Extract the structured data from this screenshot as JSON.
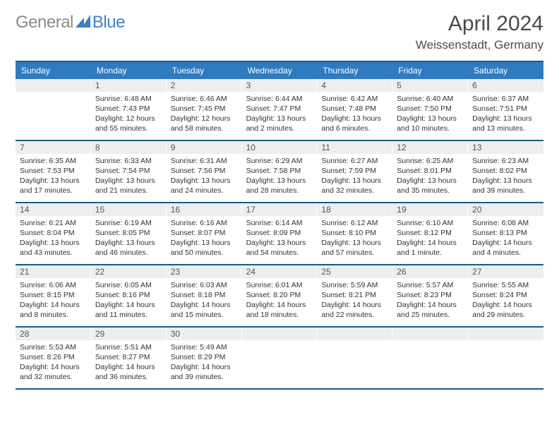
{
  "logo": {
    "word1": "General",
    "word2": "Blue"
  },
  "title": "April 2024",
  "location": "Weissenstadt, Germany",
  "colors": {
    "accent": "#3b82c4",
    "header_blue": "#2f7bbf",
    "cell_bg": "#edeef0",
    "divider": "#1a5a8a"
  },
  "days_of_week": [
    "Sunday",
    "Monday",
    "Tuesday",
    "Wednesday",
    "Thursday",
    "Friday",
    "Saturday"
  ],
  "weeks": [
    [
      {
        "n": "",
        "lines": [
          "",
          "",
          "",
          ""
        ]
      },
      {
        "n": "1",
        "lines": [
          "Sunrise: 6:48 AM",
          "Sunset: 7:43 PM",
          "Daylight: 12 hours",
          "and 55 minutes."
        ]
      },
      {
        "n": "2",
        "lines": [
          "Sunrise: 6:46 AM",
          "Sunset: 7:45 PM",
          "Daylight: 12 hours",
          "and 58 minutes."
        ]
      },
      {
        "n": "3",
        "lines": [
          "Sunrise: 6:44 AM",
          "Sunset: 7:47 PM",
          "Daylight: 13 hours",
          "and 2 minutes."
        ]
      },
      {
        "n": "4",
        "lines": [
          "Sunrise: 6:42 AM",
          "Sunset: 7:48 PM",
          "Daylight: 13 hours",
          "and 6 minutes."
        ]
      },
      {
        "n": "5",
        "lines": [
          "Sunrise: 6:40 AM",
          "Sunset: 7:50 PM",
          "Daylight: 13 hours",
          "and 10 minutes."
        ]
      },
      {
        "n": "6",
        "lines": [
          "Sunrise: 6:37 AM",
          "Sunset: 7:51 PM",
          "Daylight: 13 hours",
          "and 13 minutes."
        ]
      }
    ],
    [
      {
        "n": "7",
        "lines": [
          "Sunrise: 6:35 AM",
          "Sunset: 7:53 PM",
          "Daylight: 13 hours",
          "and 17 minutes."
        ]
      },
      {
        "n": "8",
        "lines": [
          "Sunrise: 6:33 AM",
          "Sunset: 7:54 PM",
          "Daylight: 13 hours",
          "and 21 minutes."
        ]
      },
      {
        "n": "9",
        "lines": [
          "Sunrise: 6:31 AM",
          "Sunset: 7:56 PM",
          "Daylight: 13 hours",
          "and 24 minutes."
        ]
      },
      {
        "n": "10",
        "lines": [
          "Sunrise: 6:29 AM",
          "Sunset: 7:58 PM",
          "Daylight: 13 hours",
          "and 28 minutes."
        ]
      },
      {
        "n": "11",
        "lines": [
          "Sunrise: 6:27 AM",
          "Sunset: 7:59 PM",
          "Daylight: 13 hours",
          "and 32 minutes."
        ]
      },
      {
        "n": "12",
        "lines": [
          "Sunrise: 6:25 AM",
          "Sunset: 8:01 PM",
          "Daylight: 13 hours",
          "and 35 minutes."
        ]
      },
      {
        "n": "13",
        "lines": [
          "Sunrise: 6:23 AM",
          "Sunset: 8:02 PM",
          "Daylight: 13 hours",
          "and 39 minutes."
        ]
      }
    ],
    [
      {
        "n": "14",
        "lines": [
          "Sunrise: 6:21 AM",
          "Sunset: 8:04 PM",
          "Daylight: 13 hours",
          "and 43 minutes."
        ]
      },
      {
        "n": "15",
        "lines": [
          "Sunrise: 6:19 AM",
          "Sunset: 8:05 PM",
          "Daylight: 13 hours",
          "and 46 minutes."
        ]
      },
      {
        "n": "16",
        "lines": [
          "Sunrise: 6:16 AM",
          "Sunset: 8:07 PM",
          "Daylight: 13 hours",
          "and 50 minutes."
        ]
      },
      {
        "n": "17",
        "lines": [
          "Sunrise: 6:14 AM",
          "Sunset: 8:09 PM",
          "Daylight: 13 hours",
          "and 54 minutes."
        ]
      },
      {
        "n": "18",
        "lines": [
          "Sunrise: 6:12 AM",
          "Sunset: 8:10 PM",
          "Daylight: 13 hours",
          "and 57 minutes."
        ]
      },
      {
        "n": "19",
        "lines": [
          "Sunrise: 6:10 AM",
          "Sunset: 8:12 PM",
          "Daylight: 14 hours",
          "and 1 minute."
        ]
      },
      {
        "n": "20",
        "lines": [
          "Sunrise: 6:08 AM",
          "Sunset: 8:13 PM",
          "Daylight: 14 hours",
          "and 4 minutes."
        ]
      }
    ],
    [
      {
        "n": "21",
        "lines": [
          "Sunrise: 6:06 AM",
          "Sunset: 8:15 PM",
          "Daylight: 14 hours",
          "and 8 minutes."
        ]
      },
      {
        "n": "22",
        "lines": [
          "Sunrise: 6:05 AM",
          "Sunset: 8:16 PM",
          "Daylight: 14 hours",
          "and 11 minutes."
        ]
      },
      {
        "n": "23",
        "lines": [
          "Sunrise: 6:03 AM",
          "Sunset: 8:18 PM",
          "Daylight: 14 hours",
          "and 15 minutes."
        ]
      },
      {
        "n": "24",
        "lines": [
          "Sunrise: 6:01 AM",
          "Sunset: 8:20 PM",
          "Daylight: 14 hours",
          "and 18 minutes."
        ]
      },
      {
        "n": "25",
        "lines": [
          "Sunrise: 5:59 AM",
          "Sunset: 8:21 PM",
          "Daylight: 14 hours",
          "and 22 minutes."
        ]
      },
      {
        "n": "26",
        "lines": [
          "Sunrise: 5:57 AM",
          "Sunset: 8:23 PM",
          "Daylight: 14 hours",
          "and 25 minutes."
        ]
      },
      {
        "n": "27",
        "lines": [
          "Sunrise: 5:55 AM",
          "Sunset: 8:24 PM",
          "Daylight: 14 hours",
          "and 29 minutes."
        ]
      }
    ],
    [
      {
        "n": "28",
        "lines": [
          "Sunrise: 5:53 AM",
          "Sunset: 8:26 PM",
          "Daylight: 14 hours",
          "and 32 minutes."
        ]
      },
      {
        "n": "29",
        "lines": [
          "Sunrise: 5:51 AM",
          "Sunset: 8:27 PM",
          "Daylight: 14 hours",
          "and 36 minutes."
        ]
      },
      {
        "n": "30",
        "lines": [
          "Sunrise: 5:49 AM",
          "Sunset: 8:29 PM",
          "Daylight: 14 hours",
          "and 39 minutes."
        ]
      },
      {
        "n": "",
        "lines": [
          "",
          "",
          "",
          ""
        ]
      },
      {
        "n": "",
        "lines": [
          "",
          "",
          "",
          ""
        ]
      },
      {
        "n": "",
        "lines": [
          "",
          "",
          "",
          ""
        ]
      },
      {
        "n": "",
        "lines": [
          "",
          "",
          "",
          ""
        ]
      }
    ]
  ]
}
